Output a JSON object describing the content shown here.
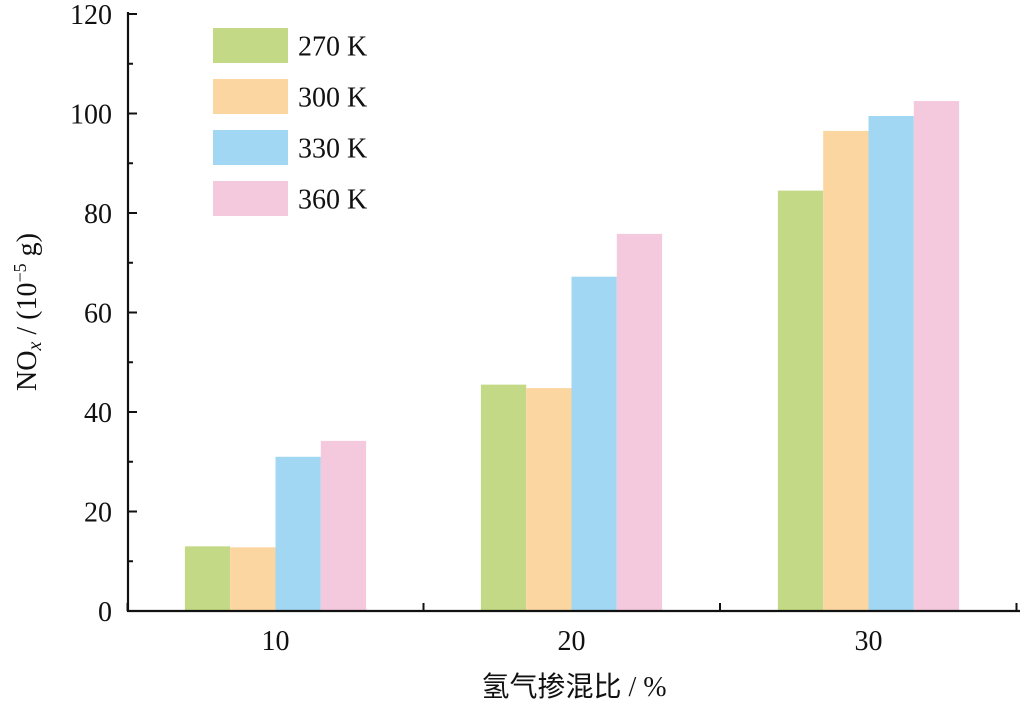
{
  "chart_data": {
    "type": "bar",
    "title": "",
    "xlabel": "氢气掺混比 / %",
    "ylabel": {
      "prefix": "NO",
      "sub": "x",
      "middle": " / (10",
      "sup": "−5",
      "suffix": " g)"
    },
    "categories": [
      "10",
      "20",
      "30"
    ],
    "series": [
      {
        "name": "270 K",
        "color": "#c3d985",
        "values": [
          13,
          45.5,
          84.5
        ]
      },
      {
        "name": "300 K",
        "color": "#fbd6a0",
        "values": [
          12.8,
          44.8,
          96.5
        ]
      },
      {
        "name": "330 K",
        "color": "#a2d7f3",
        "values": [
          31,
          67.2,
          99.5
        ]
      },
      {
        "name": "360 K",
        "color": "#f4c8dd",
        "values": [
          34.2,
          75.8,
          102.5
        ]
      }
    ],
    "ylim": [
      0,
      120
    ],
    "yticks": [
      0,
      20,
      40,
      60,
      80,
      100,
      120
    ],
    "grid": false,
    "legend_position": "top-left"
  }
}
